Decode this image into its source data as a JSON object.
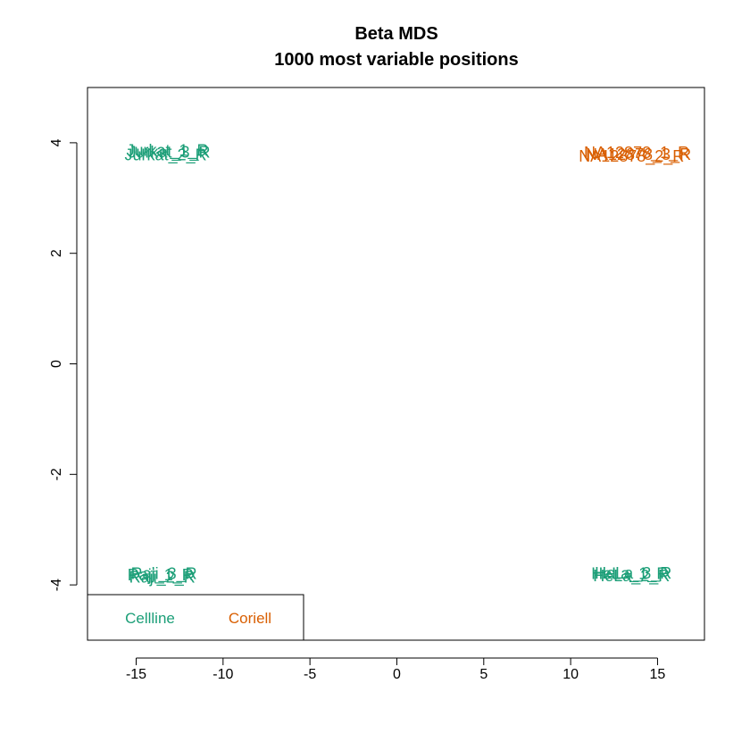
{
  "chart_data": {
    "type": "scatter",
    "title": "Beta MDS",
    "subtitle": "1000 most variable positions",
    "xlabel": "",
    "ylabel": "",
    "xlim": [
      -17.8,
      17.7
    ],
    "ylim": [
      -5.0,
      5.0
    ],
    "x_ticks": [
      "-15",
      "-10",
      "-5",
      "0",
      "5",
      "10",
      "15"
    ],
    "y_ticks": [
      "-4",
      "-2",
      "0",
      "2",
      "4"
    ],
    "grid": false,
    "legend": {
      "placement": "bottom-left",
      "entries": [
        {
          "name": "Cellline",
          "color": "#1b9e77"
        },
        {
          "name": "Coriell",
          "color": "#d95f02"
        }
      ]
    },
    "series": [
      {
        "name": "Cellline",
        "color": "#1b9e77",
        "points": [
          {
            "label": "Jurkat_1_R",
            "x": -13.2,
            "y": 3.86
          },
          {
            "label": "Jurkat_2_R",
            "x": -13.3,
            "y": 3.78
          },
          {
            "label": "Jurkat_3_R",
            "x": -13.1,
            "y": 3.83
          },
          {
            "label": "Raji_1_R",
            "x": -13.6,
            "y": -3.82
          },
          {
            "label": "Raji_2_R",
            "x": -13.5,
            "y": -3.86
          },
          {
            "label": "Raji_3_R",
            "x": -13.4,
            "y": -3.8
          },
          {
            "label": "HeLa_1_R",
            "x": 13.4,
            "y": -3.8
          },
          {
            "label": "HeLa_2_R",
            "x": 13.5,
            "y": -3.84
          },
          {
            "label": "HeLa_3_R",
            "x": 13.6,
            "y": -3.79
          }
        ]
      },
      {
        "name": "Coriell",
        "color": "#d95f02",
        "points": [
          {
            "label": "NA12878_1_R",
            "x": 13.8,
            "y": 3.82
          },
          {
            "label": "NA12878_2_R",
            "x": 13.5,
            "y": 3.76
          },
          {
            "label": "NA12878_3_R",
            "x": 13.9,
            "y": 3.79
          }
        ]
      }
    ]
  }
}
